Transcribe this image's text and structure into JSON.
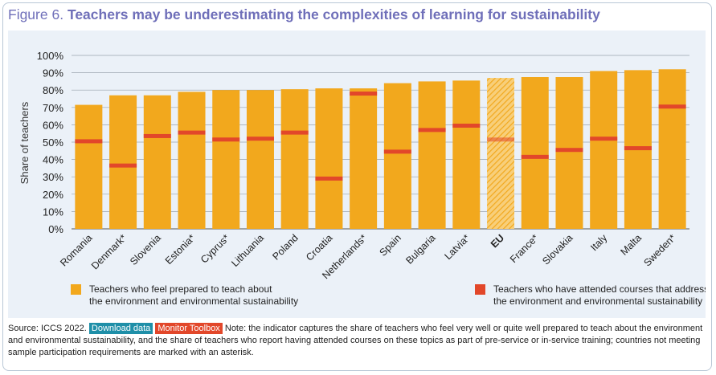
{
  "title": {
    "prefix": "Figure 6.",
    "main": "Teachers may be underestimating the complexities of learning for sustainability"
  },
  "chart_data": {
    "type": "bar",
    "ylabel": "Share of teachers",
    "ylim": [
      0,
      100
    ],
    "yticks": [
      "0%",
      "10%",
      "20%",
      "30%",
      "40%",
      "50%",
      "60%",
      "70%",
      "80%",
      "90%",
      "100%"
    ],
    "categories": [
      "Romania",
      "Denmark*",
      "Slovenia",
      "Estonia*",
      "Cyprus*",
      "Lithuania",
      "Poland",
      "Croatia",
      "Netherlands*",
      "Spain",
      "Bulgaria",
      "Latvia*",
      "EU",
      "France*",
      "Slovakia",
      "Italy",
      "Malta",
      "Sweden*"
    ],
    "highlight": "EU",
    "series": [
      {
        "name": "Teachers who feel prepared to teach about the environment and environmental sustainability",
        "kind": "bar",
        "color": "#f2a81d",
        "values": [
          71.5,
          77,
          77,
          79,
          80,
          80,
          80.5,
          81,
          81,
          84,
          85,
          85.5,
          87,
          87.5,
          87.5,
          91,
          91.5,
          92
        ]
      },
      {
        "name": "Teachers who have attended courses that address the environment and environmental sustainability",
        "kind": "marker",
        "color": "#e2472a",
        "values": [
          50.5,
          36.5,
          53.5,
          55.5,
          51.5,
          52,
          55.5,
          29,
          78,
          44.5,
          57,
          59.5,
          51.5,
          41.5,
          45.5,
          52,
          46.5,
          70.5
        ]
      }
    ],
    "legend": [
      {
        "line1": "Teachers who feel prepared to teach about",
        "line2": "the environment and environmental sustainability",
        "color": "#f2a81d"
      },
      {
        "line1": "Teachers who have attended courses that address",
        "line2": "the environment and environmental sustainability",
        "color": "#e2472a"
      }
    ]
  },
  "source": {
    "lead": "Source: ICCS 2022.",
    "download": "Download data",
    "monitor": "Monitor Toolbox",
    "note": "Note: the indicator captures the share of teachers who feel very well or quite well prepared to teach about the environment and environmental sustainability, and the share of teachers who report having attended courses on these topics as part of pre-service or in-service training; countries not meeting sample participation requirements are marked with an asterisk."
  }
}
